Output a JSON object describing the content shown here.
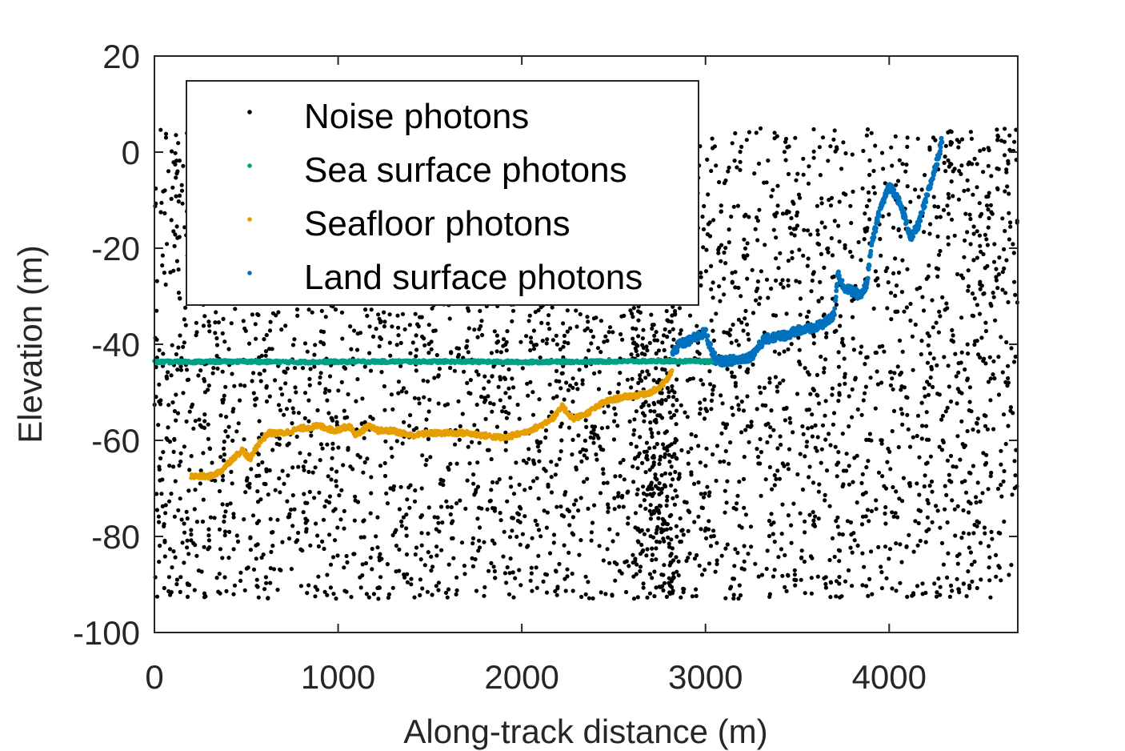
{
  "chart_data": {
    "type": "scatter",
    "title": "",
    "xlabel": "Along-track distance (m)",
    "ylabel": "Elevation (m)",
    "xlim": [
      0,
      4700
    ],
    "ylim": [
      -100,
      20
    ],
    "xticks": [
      0,
      1000,
      2000,
      3000,
      4000
    ],
    "yticks": [
      20,
      0,
      -20,
      -40,
      -60,
      -80,
      -100
    ],
    "grid": false,
    "legend_position": "top-left",
    "series": [
      {
        "name": "Noise photons",
        "color": "#000000",
        "marker": "dot",
        "note_values": "dense random background photons, x in [0, 4700], y in [-93, 5]",
        "x_range": [
          0,
          4700
        ],
        "y_range": [
          -93,
          5
        ]
      },
      {
        "name": "Sea surface photons",
        "color": "#00a087",
        "marker": "dot",
        "x": [
          0,
          400,
          800,
          1200,
          1600,
          2000,
          2400,
          2800,
          3050,
          3150,
          3250
        ],
        "y": [
          -43.7,
          -43.6,
          -43.7,
          -43.6,
          -43.6,
          -43.7,
          -43.6,
          -43.5,
          -43.6,
          -43.3,
          -43.0
        ]
      },
      {
        "name": "Seafloor photons",
        "color": "#e69f00",
        "marker": "dot",
        "x": [
          200,
          300,
          360,
          420,
          480,
          520,
          560,
          620,
          700,
          800,
          900,
          980,
          1060,
          1100,
          1160,
          1220,
          1300,
          1400,
          1500,
          1600,
          1700,
          1800,
          1900,
          2000,
          2100,
          2180,
          2220,
          2280,
          2350,
          2450,
          2550,
          2650,
          2700,
          2750,
          2800,
          2820
        ],
        "y": [
          -67.5,
          -67.5,
          -66.5,
          -64,
          -62,
          -64,
          -61,
          -58.5,
          -58.5,
          -57.5,
          -57,
          -58,
          -57,
          -59,
          -57,
          -58,
          -58,
          -59,
          -58.5,
          -58.5,
          -58.5,
          -59,
          -59.5,
          -58.5,
          -57,
          -55,
          -53,
          -55.5,
          -54.5,
          -52,
          -51,
          -50.5,
          -50,
          -49,
          -47,
          -45
        ]
      },
      {
        "name": "Land surface photons",
        "color": "#0072bd",
        "marker": "dot",
        "x": [
          2820,
          2860,
          2900,
          2950,
          3000,
          3030,
          3060,
          3100,
          3150,
          3200,
          3250,
          3280,
          3320,
          3380,
          3450,
          3500,
          3550,
          3600,
          3650,
          3700,
          3720,
          3750,
          3800,
          3850,
          3880,
          3900,
          3950,
          4000,
          4040,
          4080,
          4120,
          4160,
          4200,
          4230,
          4260,
          4290
        ],
        "y": [
          -42,
          -40,
          -39.5,
          -38.5,
          -37.5,
          -41,
          -43.5,
          -43.5,
          -43.3,
          -43,
          -42.5,
          -41,
          -39,
          -38.5,
          -38,
          -37,
          -37,
          -36.5,
          -35.5,
          -34,
          -25,
          -28,
          -29,
          -30,
          -27,
          -20,
          -12,
          -7,
          -9,
          -13,
          -18,
          -15,
          -10,
          -6,
          -2,
          3
        ]
      }
    ]
  }
}
